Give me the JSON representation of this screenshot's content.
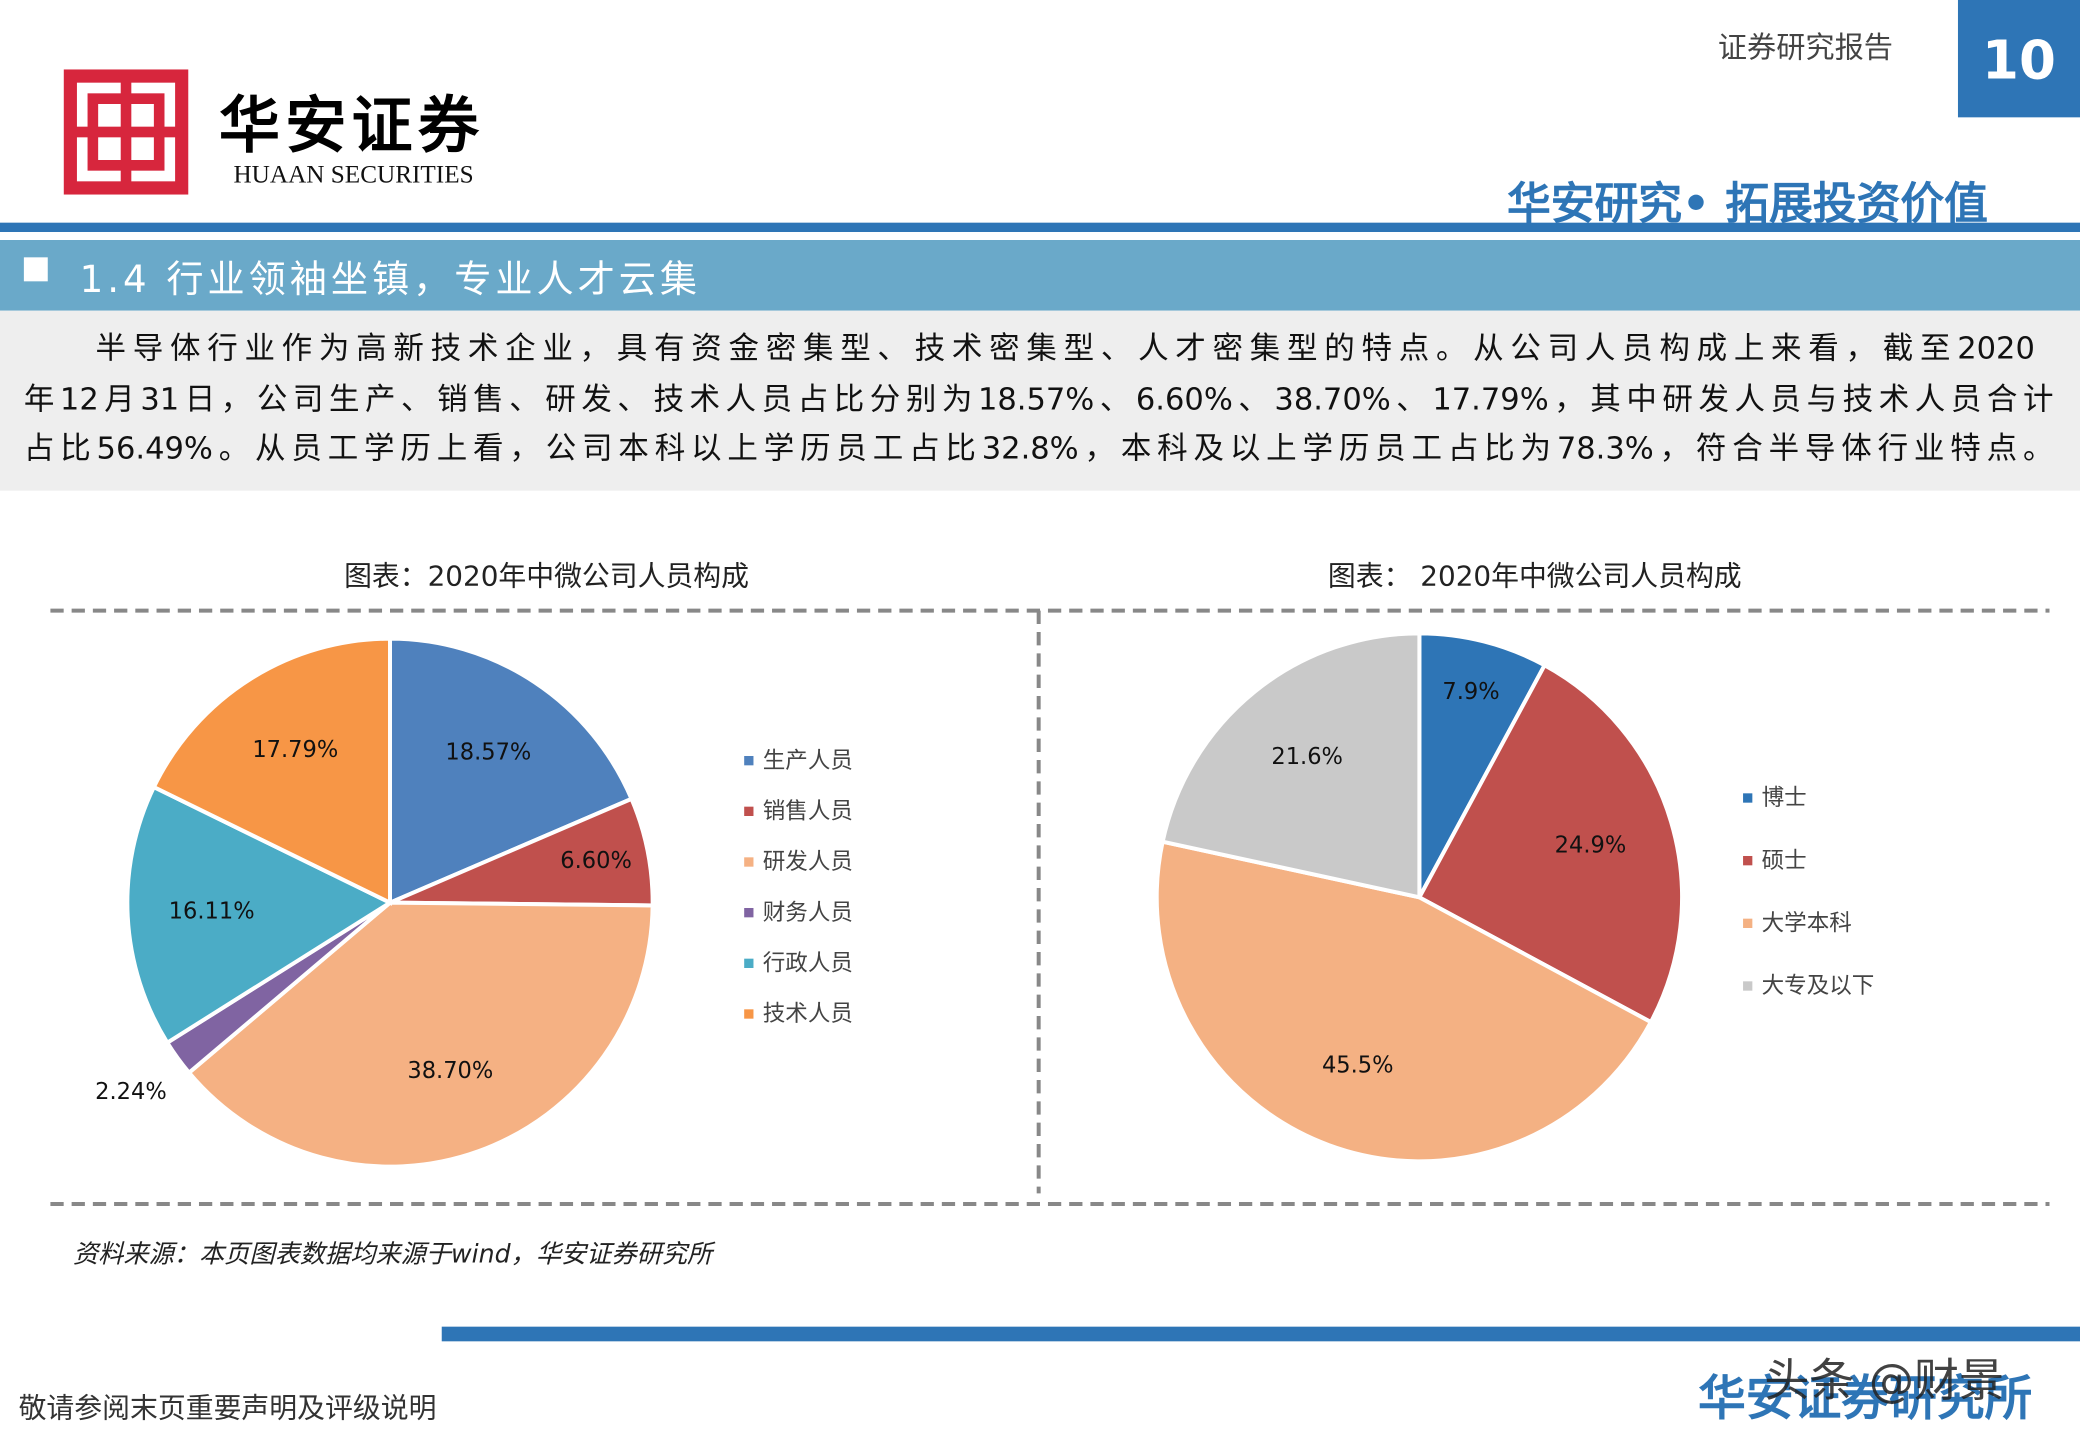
{
  "header": {
    "logo_cn": "华安证券",
    "logo_en": "HUAAN SECURITIES",
    "report_type": "证券研究报告",
    "page_number": "10",
    "slogan": "华安研究• 拓展投资价值"
  },
  "section": {
    "title": "1.4 行业领袖坐镇，专业人才云集"
  },
  "paragraph": {
    "lines": [
      "半导体行业作为高新技术企业，具有资金密集型、技术密集型、人才密集型的特点。从公司人员构成上来看，截至2020",
      "年12月31日，公司生产、销售、研发、技术人员占比分别为18.57%、6.60%、38.70%、17.79%，其中研发人员与技术人员合计",
      "占比56.49%。从员工学历上看，公司本科以上学历员工占比32.8%，本科及以上学历员工占比为78.3%，符合半导体行业特点。"
    ]
  },
  "chart_data": [
    {
      "type": "pie",
      "title": "图表：2020年中微公司人员构成",
      "categories": [
        "生产人员",
        "销售人员",
        "研发人员",
        "财务人员",
        "行政人员",
        "技术人员"
      ],
      "values": [
        18.57,
        6.6,
        38.7,
        2.24,
        16.11,
        17.79
      ],
      "value_labels": [
        "18.57%",
        "6.60%",
        "38.70%",
        "2.24%",
        "16.11%",
        "17.79%"
      ],
      "colors": [
        "#4f81bd",
        "#c0504d",
        "#f5b183",
        "#8064a2",
        "#4bacc6",
        "#f79646"
      ]
    },
    {
      "type": "pie",
      "title": "图表： 2020年中微公司人员构成",
      "categories": [
        "博士",
        "硕士",
        "大学本科",
        "大专及以下"
      ],
      "values": [
        7.9,
        24.9,
        45.5,
        21.6
      ],
      "value_labels": [
        "7.9%",
        "24.9%",
        "45.5%",
        "21.6%"
      ],
      "colors": [
        "#2e75b6",
        "#c0504d",
        "#f4b183",
        "#c9c9c9"
      ]
    }
  ],
  "source": "资料来源：本页图表数据均来源于wind，华安证券研究所",
  "footer": {
    "disclaimer": "敬请参阅末页重要声明及评级说明",
    "institute": "华安证券研究所",
    "watermark": "头条 @财景"
  }
}
